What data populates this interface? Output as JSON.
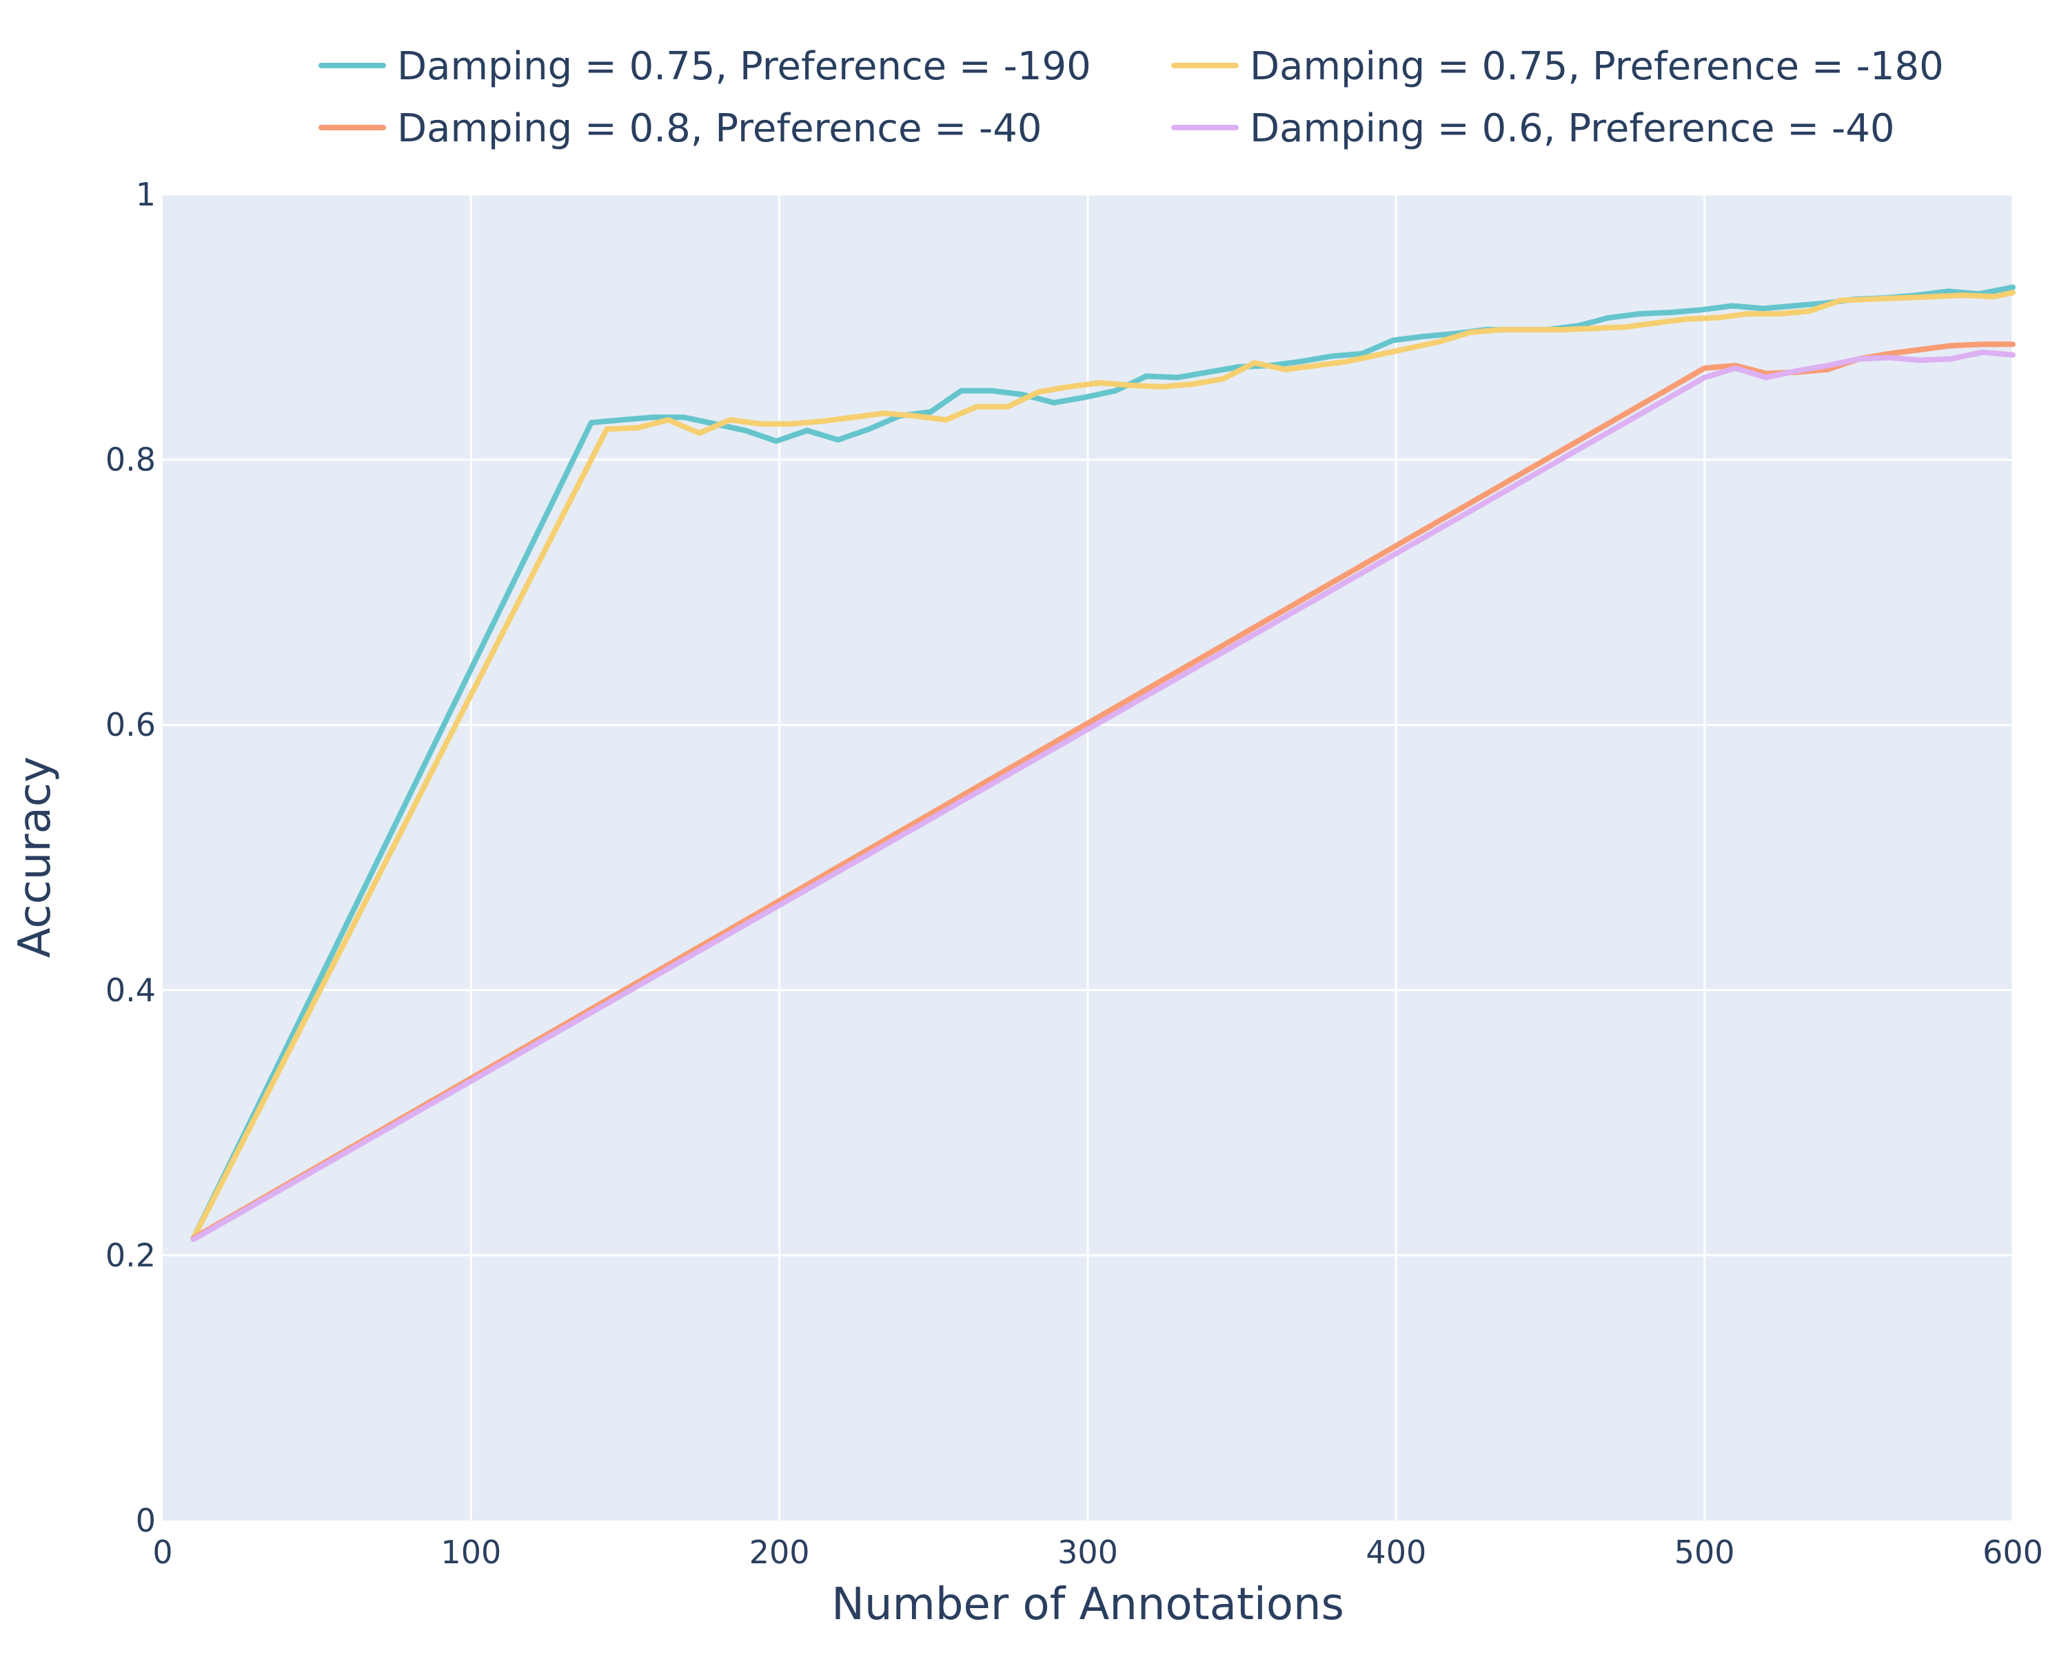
{
  "chart_data": {
    "type": "line",
    "title": "",
    "xlabel": "Number of Annotations",
    "ylabel": "Accuracy",
    "xlim": [
      0,
      600
    ],
    "ylim": [
      0,
      1
    ],
    "x_ticks": [
      0,
      100,
      200,
      300,
      400,
      500,
      600
    ],
    "y_ticks": [
      0,
      0.2,
      0.4,
      0.6,
      0.8,
      1
    ],
    "x_tick_labels": [
      "0",
      "100",
      "200",
      "300",
      "400",
      "500",
      "600"
    ],
    "y_tick_labels": [
      "0",
      "0.2",
      "0.4",
      "0.6",
      "0.8",
      "1"
    ],
    "grid": true,
    "legend_position": "top",
    "plot_background": "#e5ecf6",
    "series": [
      {
        "name": "Damping = 0.75, Preference = -190",
        "color": "#66c5cc",
        "x": [
          10,
          139,
          149,
          159,
          169,
          179,
          189,
          199,
          209,
          219,
          229,
          239,
          249,
          259,
          269,
          279,
          289,
          299,
          309,
          319,
          329,
          339,
          349,
          359,
          369,
          379,
          389,
          399,
          409,
          419,
          429,
          439,
          449,
          459,
          469,
          479,
          489,
          499,
          509,
          519,
          529,
          539,
          549,
          559,
          569,
          579,
          589,
          600
        ],
        "y": [
          0.213,
          0.828,
          0.83,
          0.832,
          0.832,
          0.827,
          0.822,
          0.814,
          0.822,
          0.815,
          0.823,
          0.833,
          0.836,
          0.852,
          0.852,
          0.849,
          0.843,
          0.847,
          0.852,
          0.863,
          0.862,
          0.866,
          0.87,
          0.871,
          0.874,
          0.878,
          0.88,
          0.89,
          0.893,
          0.895,
          0.898,
          0.898,
          0.898,
          0.901,
          0.907,
          0.91,
          0.911,
          0.913,
          0.916,
          0.914,
          0.916,
          0.918,
          0.921,
          0.922,
          0.924,
          0.927,
          0.925,
          0.93
        ]
      },
      {
        "name": "Damping = 0.75, Preference = -180",
        "color": "#f6cf71",
        "x": [
          10,
          144,
          154,
          164,
          174,
          184,
          194,
          204,
          214,
          224,
          234,
          244,
          254,
          264,
          274,
          284,
          294,
          304,
          314,
          324,
          334,
          344,
          354,
          364,
          374,
          384,
          394,
          404,
          414,
          424,
          434,
          444,
          454,
          464,
          474,
          484,
          494,
          504,
          514,
          524,
          534,
          544,
          554,
          564,
          574,
          584,
          594,
          600
        ],
        "y": [
          0.213,
          0.823,
          0.824,
          0.83,
          0.82,
          0.83,
          0.827,
          0.827,
          0.829,
          0.832,
          0.835,
          0.833,
          0.83,
          0.84,
          0.84,
          0.851,
          0.855,
          0.858,
          0.856,
          0.855,
          0.857,
          0.861,
          0.873,
          0.868,
          0.871,
          0.874,
          0.879,
          0.884,
          0.889,
          0.896,
          0.898,
          0.898,
          0.898,
          0.899,
          0.9,
          0.903,
          0.906,
          0.907,
          0.91,
          0.91,
          0.912,
          0.92,
          0.921,
          0.922,
          0.923,
          0.924,
          0.923,
          0.926
        ]
      },
      {
        "name": "Damping = 0.8, Preference = -40",
        "color": "#f89c74",
        "x": [
          10,
          500,
          510,
          520,
          530,
          540,
          550,
          560,
          570,
          580,
          590,
          600
        ],
        "y": [
          0.213,
          0.869,
          0.871,
          0.865,
          0.866,
          0.868,
          0.876,
          0.88,
          0.883,
          0.886,
          0.887,
          0.887
        ]
      },
      {
        "name": "Damping = 0.6, Preference = -40",
        "color": "#dcb0f2",
        "x": [
          10,
          500,
          510,
          520,
          530,
          540,
          550,
          560,
          570,
          580,
          590,
          600
        ],
        "y": [
          0.212,
          0.862,
          0.869,
          0.862,
          0.867,
          0.871,
          0.876,
          0.877,
          0.875,
          0.876,
          0.881,
          0.879
        ]
      }
    ]
  }
}
